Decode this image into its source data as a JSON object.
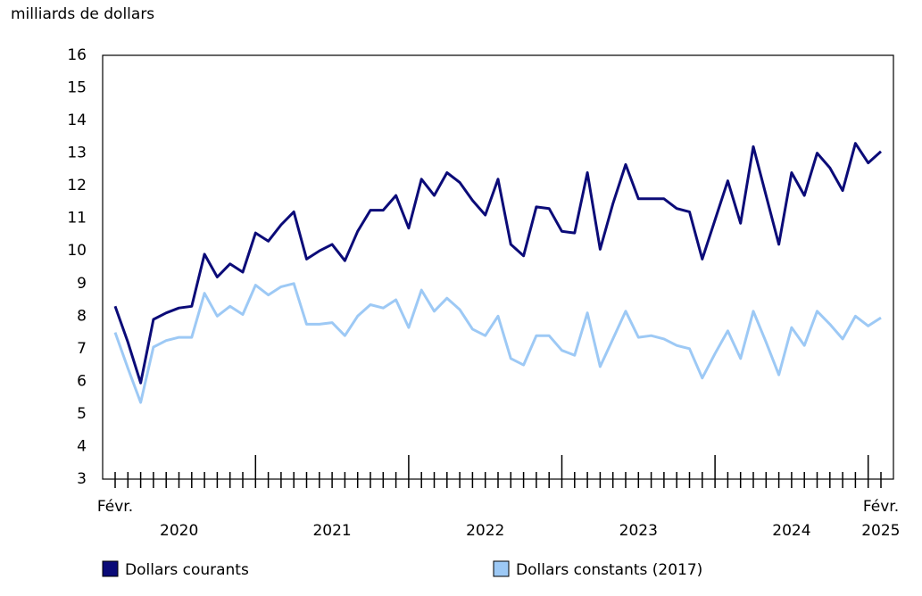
{
  "chart_data": {
    "type": "line",
    "y_axis_label": "milliards de dollars",
    "categories": [
      "Févr.",
      null,
      null,
      null,
      null,
      null,
      null,
      null,
      null,
      null,
      null,
      null,
      null,
      null,
      null,
      null,
      null,
      null,
      null,
      null,
      null,
      null,
      null,
      null,
      null,
      null,
      null,
      null,
      null,
      null,
      null,
      null,
      null,
      null,
      null,
      null,
      null,
      null,
      null,
      null,
      null,
      null,
      null,
      null,
      null,
      null,
      null,
      null,
      null,
      null,
      null,
      null,
      null,
      null,
      null,
      null,
      null,
      null,
      null,
      null,
      "Févr."
    ],
    "year_labels": [
      "2020",
      "2021",
      "2022",
      "2023",
      "2024",
      "2025"
    ],
    "series": [
      {
        "name": "Dollars courants",
        "color": "#0b0b78",
        "values": [
          8.3,
          7.2,
          5.95,
          7.9,
          8.1,
          8.25,
          8.3,
          9.9,
          9.2,
          9.6,
          9.35,
          10.55,
          10.3,
          10.8,
          11.2,
          9.75,
          10.0,
          10.2,
          9.7,
          10.6,
          11.25,
          11.25,
          11.7,
          10.7,
          12.2,
          11.7,
          12.4,
          12.1,
          11.55,
          11.1,
          12.2,
          10.2,
          9.85,
          11.35,
          11.3,
          10.6,
          10.55,
          12.4,
          10.05,
          11.45,
          12.65,
          11.6,
          11.6,
          11.6,
          11.3,
          11.2,
          9.75,
          10.95,
          12.15,
          10.85,
          13.2,
          11.7,
          10.2,
          12.4,
          11.7,
          13.0,
          12.55,
          11.85,
          13.3,
          12.7,
          13.05
        ]
      },
      {
        "name": "Dollars constants (2017)",
        "color": "#9dc9f5",
        "values": [
          7.5,
          6.4,
          5.35,
          7.05,
          7.25,
          7.35,
          7.35,
          8.7,
          8.0,
          8.3,
          8.05,
          8.95,
          8.65,
          8.9,
          9.0,
          7.75,
          7.75,
          7.8,
          7.4,
          8.0,
          8.35,
          8.25,
          8.5,
          7.65,
          8.8,
          8.15,
          8.55,
          8.2,
          7.6,
          7.4,
          8.0,
          6.7,
          6.5,
          7.4,
          7.4,
          6.95,
          6.8,
          8.1,
          6.45,
          7.3,
          8.15,
          7.35,
          7.4,
          7.3,
          7.1,
          7.0,
          6.1,
          6.85,
          7.55,
          6.7,
          8.15,
          7.2,
          6.2,
          7.65,
          7.1,
          8.15,
          7.75,
          7.3,
          8.0,
          7.7,
          7.95
        ]
      }
    ],
    "ylim": [
      3,
      16
    ],
    "yticks": [
      3,
      4,
      5,
      6,
      7,
      8,
      9,
      10,
      11,
      12,
      13,
      14,
      15,
      16
    ],
    "grid": false
  }
}
